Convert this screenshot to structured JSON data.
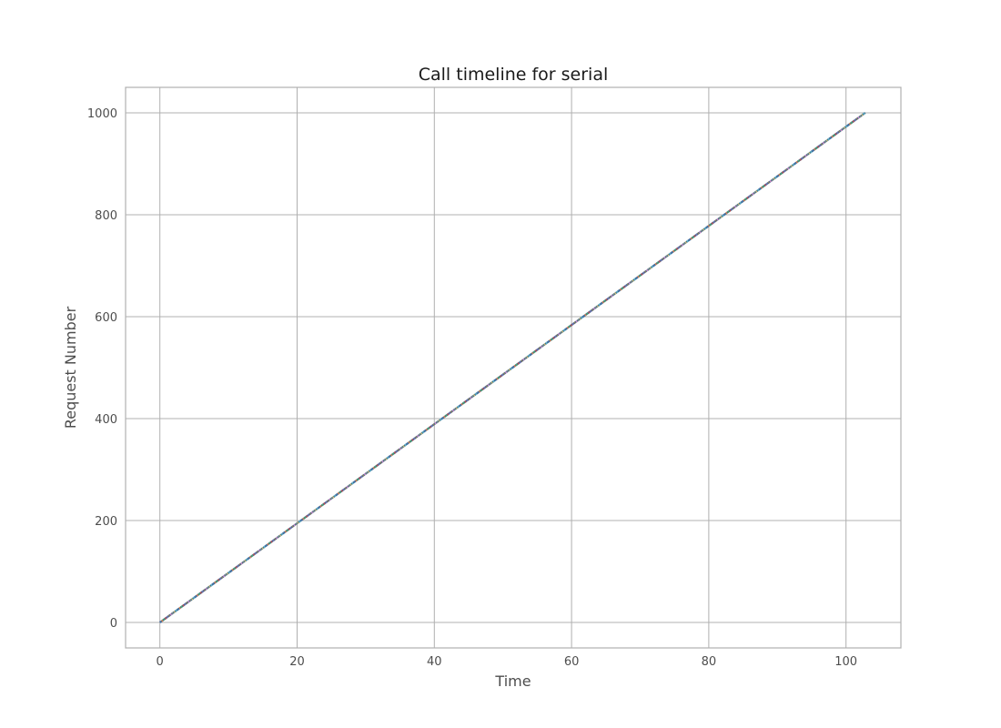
{
  "chart_data": {
    "type": "line",
    "title": "Call timeline for serial",
    "xlabel": "Time",
    "ylabel": "Request Number",
    "xlim": [
      -5,
      108
    ],
    "ylim": [
      -50,
      1050
    ],
    "x_ticks": [
      0,
      20,
      40,
      60,
      80,
      100
    ],
    "y_ticks": [
      0,
      200,
      400,
      600,
      800,
      1000
    ],
    "grid": true,
    "legend": "none",
    "series_colors": [
      "#4c72b0",
      "#dd8452",
      "#55a868",
      "#c44e52",
      "#8172b3",
      "#937860",
      "#da8bc3",
      "#8c8c8c",
      "#ccb974",
      "#64b5cd"
    ],
    "series": [
      {
        "values": [
          [
            0,
            0
          ],
          [
            102.8,
            1000
          ]
        ]
      }
    ]
  }
}
